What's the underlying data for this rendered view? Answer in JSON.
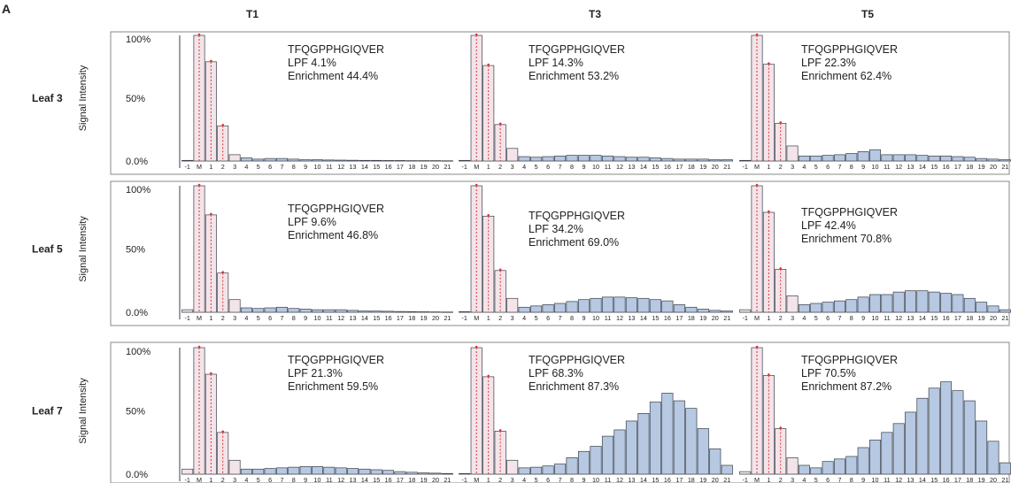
{
  "figure": {
    "panel_letter": "A",
    "columns": [
      "T1",
      "T3",
      "T5"
    ],
    "rows": [
      "Leaf 3",
      "Leaf 5",
      "Leaf 7"
    ],
    "ylabel": "Signal Intensity",
    "colors": {
      "unlabeled_bar_fill": "#f3e4ea",
      "unlabeled_bar_dash": "#d83535",
      "labeled_bar_fill": "#b6c8e2",
      "bar_stroke": "#3b3f48",
      "frame": "#8a8a8a",
      "text": "#222222"
    }
  },
  "chart_data": [
    {
      "type": "bar",
      "row": "Leaf 3",
      "column": "T1",
      "peptide": "TFQGPPHGIQVER",
      "lpf": "LPF 4.1%",
      "enrichment": "Enrichment 44.4%",
      "categories": [
        "-1",
        "M",
        "1",
        "2",
        "3",
        "4",
        "5",
        "6",
        "7",
        "8",
        "9",
        "10",
        "11",
        "12",
        "13",
        "14",
        "15",
        "16",
        "17",
        "18",
        "19",
        "20",
        "21"
      ],
      "values": [
        0.5,
        100,
        79,
        28,
        5,
        2.5,
        1.5,
        2,
        2,
        1.5,
        1,
        1,
        0.8,
        0.7,
        0.6,
        0.5,
        0.5,
        0.4,
        0.4,
        0.3,
        0.3,
        0.3,
        0.2
      ],
      "unlabeled_count": 4,
      "yticks": [
        "100%",
        "50%",
        "0.0%"
      ],
      "ylim": [
        0,
        100
      ]
    },
    {
      "type": "bar",
      "row": "Leaf 3",
      "column": "T3",
      "peptide": "TFQGPPHGIQVER",
      "lpf": "LPF 14.3%",
      "enrichment": "Enrichment 53.2%",
      "categories": [
        "-1",
        "M",
        "1",
        "2",
        "3",
        "4",
        "5",
        "6",
        "7",
        "8",
        "9",
        "10",
        "11",
        "12",
        "13",
        "14",
        "15",
        "16",
        "17",
        "18",
        "19",
        "20",
        "21"
      ],
      "values": [
        0.5,
        100,
        76,
        29,
        10,
        3.5,
        3,
        3.5,
        4,
        4.5,
        4.5,
        4.5,
        4,
        3.5,
        3,
        3,
        2.5,
        2,
        1.5,
        1.5,
        1.5,
        1,
        1
      ],
      "unlabeled_count": 4,
      "yticks": [],
      "ylim": [
        0,
        100
      ]
    },
    {
      "type": "bar",
      "row": "Leaf 3",
      "column": "T5",
      "peptide": "TFQGPPHGIQVER",
      "lpf": "LPF 22.3%",
      "enrichment": "Enrichment 62.4%",
      "categories": [
        "-1",
        "M",
        "1",
        "2",
        "3",
        "4",
        "5",
        "6",
        "7",
        "8",
        "9",
        "10",
        "11",
        "12",
        "13",
        "14",
        "15",
        "16",
        "17",
        "18",
        "19",
        "20",
        "21"
      ],
      "values": [
        0.5,
        100,
        77,
        30,
        12,
        4,
        4,
        4.5,
        5,
        6,
        7.5,
        9,
        5,
        5,
        5,
        4.5,
        4,
        4,
        3.5,
        3,
        2,
        1.5,
        1
      ],
      "unlabeled_count": 4,
      "yticks": [],
      "ylim": [
        0,
        100
      ]
    },
    {
      "type": "bar",
      "row": "Leaf 5",
      "column": "T1",
      "peptide": "TFQGPPHGIQVER",
      "lpf": "LPF 9.6%",
      "enrichment": "Enrichment 46.8%",
      "categories": [
        "-1",
        "M",
        "1",
        "2",
        "3",
        "4",
        "5",
        "6",
        "7",
        "8",
        "9",
        "10",
        "11",
        "12",
        "13",
        "14",
        "15",
        "16",
        "17",
        "18",
        "19",
        "20",
        "21"
      ],
      "values": [
        2,
        100,
        77,
        31,
        10,
        3.5,
        3,
        3.5,
        4,
        3,
        2.5,
        2,
        2,
        2,
        1.5,
        1,
        1,
        0.8,
        0.6,
        0.5,
        0.4,
        0.3,
        0.2
      ],
      "unlabeled_count": 4,
      "yticks": [
        "100%",
        "50%",
        "0.0%"
      ],
      "ylim": [
        0,
        100
      ]
    },
    {
      "type": "bar",
      "row": "Leaf 5",
      "column": "T3",
      "peptide": "TFQGPPHGIQVER",
      "lpf": "LPF 34.2%",
      "enrichment": "Enrichment 69.0%",
      "categories": [
        "-1",
        "M",
        "1",
        "2",
        "3",
        "4",
        "5",
        "6",
        "7",
        "8",
        "9",
        "10",
        "11",
        "12",
        "13",
        "14",
        "15",
        "16",
        "17",
        "18",
        "19",
        "20",
        "21"
      ],
      "values": [
        0.5,
        100,
        76,
        33,
        11,
        4,
        5,
        6,
        7,
        8.5,
        10,
        11,
        12,
        12,
        11.5,
        11,
        10,
        9,
        6,
        4,
        2.5,
        1.5,
        1
      ],
      "unlabeled_count": 4,
      "yticks": [],
      "ylim": [
        0,
        100
      ]
    },
    {
      "type": "bar",
      "row": "Leaf 5",
      "column": "T5",
      "peptide": "TFQGPPHGIQVER",
      "lpf": "LPF 42.4%",
      "enrichment": "Enrichment 70.8%",
      "categories": [
        "-1",
        "M",
        "1",
        "2",
        "3",
        "4",
        "5",
        "6",
        "7",
        "8",
        "9",
        "10",
        "11",
        "12",
        "13",
        "14",
        "15",
        "16",
        "17",
        "18",
        "19",
        "20",
        "21"
      ],
      "values": [
        2,
        100,
        79,
        34,
        13,
        6,
        7,
        8,
        9,
        10,
        12,
        14,
        14,
        16,
        17,
        17,
        16,
        15,
        14,
        11,
        8,
        5,
        2
      ],
      "unlabeled_count": 4,
      "yticks": [],
      "ylim": [
        0,
        100
      ]
    },
    {
      "type": "bar",
      "row": "Leaf 7",
      "column": "T1",
      "peptide": "TFQGPPHGIQVER",
      "lpf": "LPF 21.3%",
      "enrichment": "Enrichment 59.5%",
      "categories": [
        "-1",
        "M",
        "1",
        "2",
        "3",
        "4",
        "5",
        "6",
        "7",
        "8",
        "9",
        "10",
        "11",
        "12",
        "13",
        "14",
        "15",
        "16",
        "17",
        "18",
        "19",
        "20",
        "21"
      ],
      "values": [
        4,
        100,
        79,
        33,
        11,
        4,
        4,
        4.5,
        5,
        5.5,
        6,
        6,
        5.5,
        5,
        4.5,
        4,
        3.5,
        3,
        2,
        1.5,
        1,
        0.8,
        0.5
      ],
      "unlabeled_count": 4,
      "yticks": [
        "100%",
        "50%",
        "0.0%"
      ],
      "ylim": [
        0,
        100
      ]
    },
    {
      "type": "bar",
      "row": "Leaf 7",
      "column": "T3",
      "peptide": "TFQGPPHGIQVER",
      "lpf": "LPF 68.3%",
      "enrichment": "Enrichment 87.3%",
      "categories": [
        "-1",
        "M",
        "1",
        "2",
        "3",
        "4",
        "5",
        "6",
        "7",
        "8",
        "9",
        "10",
        "11",
        "12",
        "13",
        "14",
        "15",
        "16",
        "17",
        "18",
        "19",
        "20",
        "21"
      ],
      "values": [
        0.5,
        100,
        77,
        34,
        11,
        5,
        5.5,
        6.5,
        8,
        13,
        18,
        22,
        30,
        35,
        42,
        48,
        57,
        64,
        58,
        52,
        36,
        20,
        7
      ],
      "unlabeled_count": 4,
      "yticks": [],
      "ylim": [
        0,
        100
      ]
    },
    {
      "type": "bar",
      "row": "Leaf 7",
      "column": "T5",
      "peptide": "TFQGPPHGIQVER",
      "lpf": "LPF 70.5%",
      "enrichment": "Enrichment 87.2%",
      "categories": [
        "-1",
        "M",
        "1",
        "2",
        "3",
        "4",
        "5",
        "6",
        "7",
        "8",
        "9",
        "10",
        "11",
        "12",
        "13",
        "14",
        "15",
        "16",
        "17",
        "18",
        "19",
        "20",
        "21"
      ],
      "values": [
        2,
        100,
        78,
        36,
        13,
        7,
        5,
        10,
        12,
        14,
        21,
        27,
        33,
        40,
        49,
        60,
        68,
        73,
        66,
        58,
        42,
        26,
        9
      ],
      "unlabeled_count": 4,
      "yticks": [],
      "ylim": [
        0,
        100
      ]
    }
  ]
}
